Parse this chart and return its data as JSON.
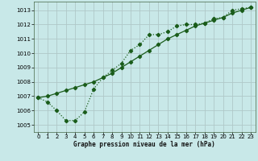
{
  "xlabel": "Graphe pression niveau de la mer (hPa)",
  "bg_color": "#c8e8e8",
  "plot_bg_color": "#c8e8e8",
  "grid_color": "#b0c8c8",
  "line_color": "#1a5c1a",
  "xlim": [
    -0.5,
    23.5
  ],
  "ylim": [
    1004.5,
    1013.6
  ],
  "yticks": [
    1005,
    1006,
    1007,
    1008,
    1009,
    1010,
    1011,
    1012,
    1013
  ],
  "xticks": [
    0,
    1,
    2,
    3,
    4,
    5,
    6,
    7,
    8,
    9,
    10,
    11,
    12,
    13,
    14,
    15,
    16,
    17,
    18,
    19,
    20,
    21,
    22,
    23
  ],
  "series1_x": [
    0,
    1,
    2,
    3,
    4,
    5,
    6,
    7,
    8,
    9,
    10,
    11,
    12,
    13,
    14,
    15,
    16,
    17,
    18,
    19,
    20,
    21,
    22,
    23
  ],
  "series1_y": [
    1006.9,
    1006.6,
    1006.0,
    1005.3,
    1005.3,
    1005.9,
    1007.5,
    1008.3,
    1008.8,
    1009.3,
    1010.2,
    1010.6,
    1011.3,
    1011.3,
    1011.5,
    1011.9,
    1012.0,
    1012.0,
    1012.1,
    1012.4,
    1012.5,
    1013.0,
    1013.1,
    1013.2
  ],
  "series2_x": [
    0,
    1,
    2,
    3,
    4,
    5,
    6,
    7,
    8,
    9,
    10,
    11,
    12,
    13,
    14,
    15,
    16,
    17,
    18,
    19,
    20,
    21,
    22,
    23
  ],
  "series2_y": [
    1006.9,
    1007.0,
    1007.2,
    1007.4,
    1007.6,
    1007.8,
    1008.0,
    1008.3,
    1008.6,
    1009.0,
    1009.4,
    1009.8,
    1010.2,
    1010.6,
    1011.0,
    1011.3,
    1011.6,
    1011.9,
    1012.1,
    1012.3,
    1012.5,
    1012.8,
    1013.0,
    1013.2
  ]
}
